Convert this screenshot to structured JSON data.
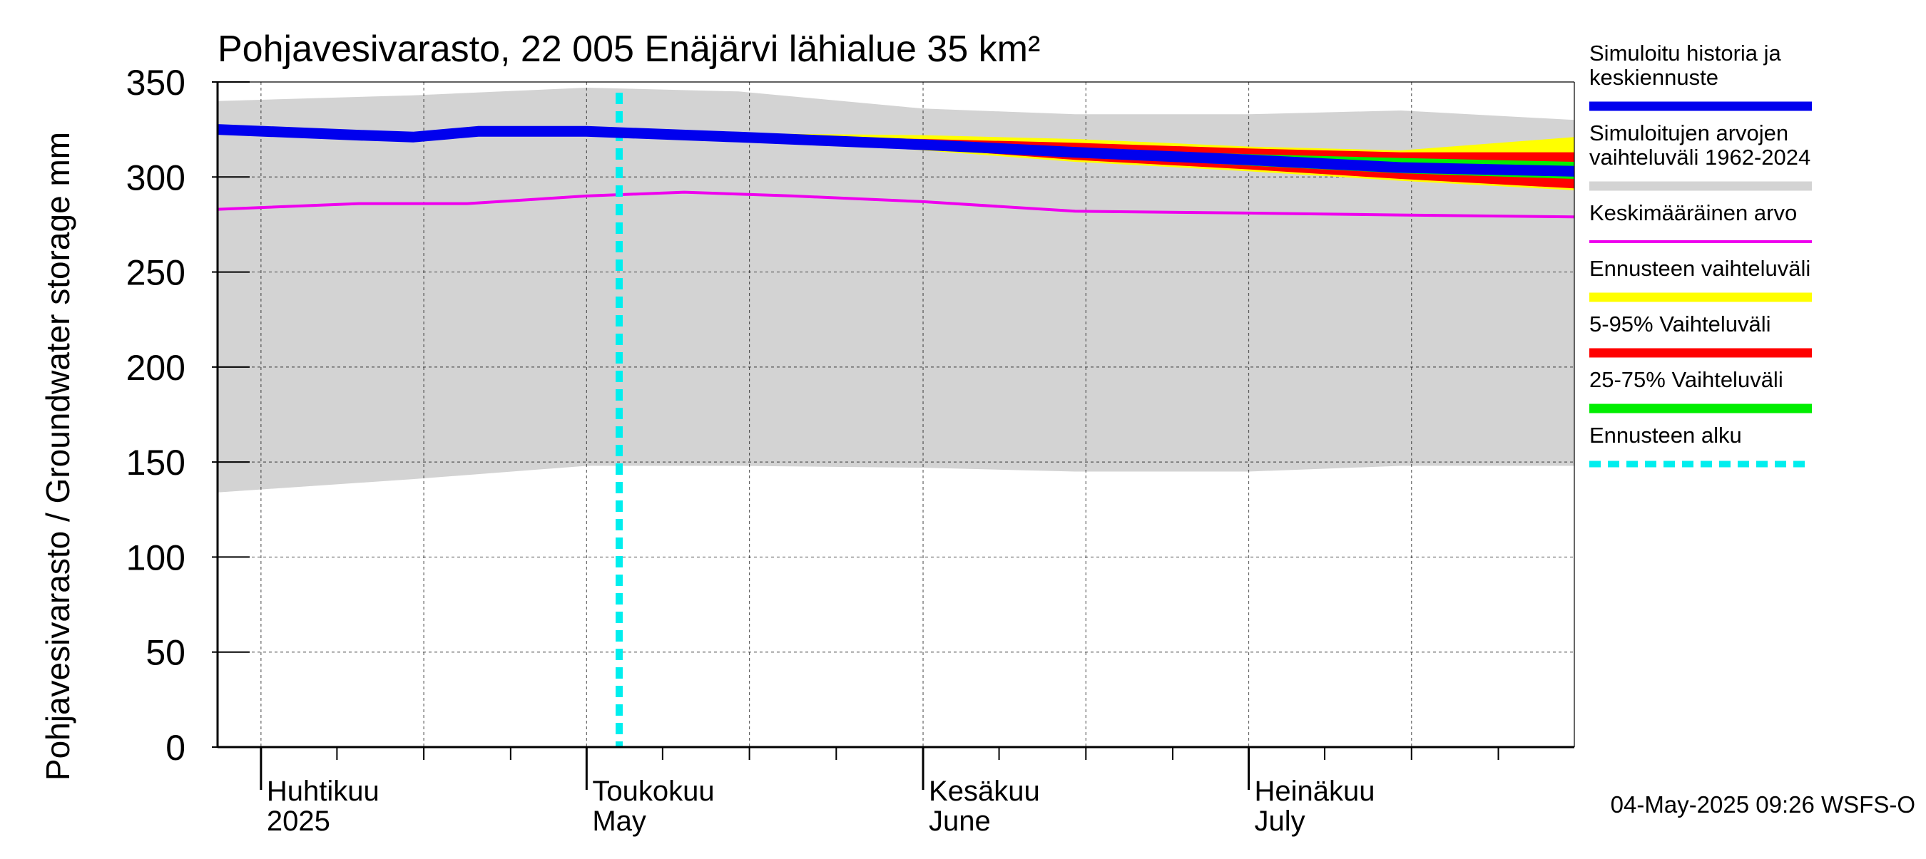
{
  "chart_data": {
    "type": "area",
    "title": "Pohjavesivarasto, 22 005 Enäjärvi lähialue 35 km²",
    "ylabel": "Pohjavesivarasto / Groundwater storage   mm",
    "ylim": [
      0,
      350
    ],
    "yticks": [
      0,
      50,
      100,
      150,
      200,
      250,
      300,
      350
    ],
    "ytick_labels": [
      "0",
      "50",
      "100",
      "150",
      "200",
      "250",
      "300",
      "350"
    ],
    "xlim": [
      "2025-03-28",
      "2025-07-31"
    ],
    "grid": true,
    "legend_position": "right",
    "month_labels": [
      {
        "date": "2025-04-01",
        "line1": "Huhtikuu",
        "line2": "2025"
      },
      {
        "date": "2025-05-01",
        "line1": "Toukokuu",
        "line2": "May"
      },
      {
        "date": "2025-06-01",
        "line1": "Kesäkuu",
        "line2": "June"
      },
      {
        "date": "2025-07-01",
        "line1": "Heinäkuu",
        "line2": "July"
      }
    ],
    "forecast_start": "2025-05-04",
    "historical_range": {
      "name": "Simuloitujen arvojen vaihteluväli 1962-2024",
      "color": "#d3d3d3",
      "x": [
        "2025-03-28",
        "2025-04-15",
        "2025-05-01",
        "2025-05-15",
        "2025-06-01",
        "2025-06-15",
        "2025-07-01",
        "2025-07-15",
        "2025-07-31"
      ],
      "upper": [
        340,
        343,
        347,
        345,
        336,
        333,
        333,
        335,
        330
      ],
      "lower": [
        134,
        141,
        148,
        148,
        147,
        145,
        145,
        148,
        148
      ]
    },
    "forecast_full_range": {
      "name": "Ennusteen vaihteluväli",
      "color": "#ffff00",
      "x": [
        "2025-05-04",
        "2025-05-15",
        "2025-06-01",
        "2025-06-15",
        "2025-07-01",
        "2025-07-15",
        "2025-07-31"
      ],
      "upper": [
        324,
        323,
        322,
        320,
        316,
        314,
        321
      ],
      "lower": [
        324,
        321,
        314,
        308,
        303,
        298,
        293
      ]
    },
    "forecast_p5_p95": {
      "name": "5-95% Vaihteluväli",
      "color": "#ff0000",
      "x": [
        "2025-05-04",
        "2025-05-15",
        "2025-06-01",
        "2025-06-15",
        "2025-07-01",
        "2025-07-15",
        "2025-07-31"
      ],
      "upper": [
        324,
        322,
        320,
        318,
        315,
        313,
        313
      ],
      "lower": [
        324,
        321,
        315,
        309,
        304,
        299,
        294
      ]
    },
    "forecast_p25_p75": {
      "name": "25-75% Vaihteluväli",
      "color": "#00ee00",
      "x": [
        "2025-05-04",
        "2025-05-15",
        "2025-06-01",
        "2025-06-15",
        "2025-07-01",
        "2025-07-15",
        "2025-07-31"
      ],
      "upper": [
        324,
        322,
        318,
        315,
        312,
        310,
        308
      ],
      "lower": [
        324,
        321,
        316,
        311,
        306,
        302,
        299
      ]
    },
    "series": [
      {
        "name": "Simuloitu historia ja keskiennuste",
        "color": "#0000ee",
        "x": [
          "2025-03-28",
          "2025-04-10",
          "2025-04-15",
          "2025-04-21",
          "2025-05-01",
          "2025-05-15",
          "2025-06-01",
          "2025-06-15",
          "2025-07-01",
          "2025-07-15",
          "2025-07-31"
        ],
        "y": [
          325,
          322,
          321,
          324,
          324,
          321,
          317,
          313,
          309,
          305,
          303
        ]
      },
      {
        "name": "Keskimääräinen arvo",
        "color": "#ee00ee",
        "x": [
          "2025-03-28",
          "2025-04-10",
          "2025-04-20",
          "2025-05-01",
          "2025-05-10",
          "2025-05-20",
          "2025-06-01",
          "2025-06-15",
          "2025-07-01",
          "2025-07-15",
          "2025-07-31"
        ],
        "y": [
          283,
          286,
          286,
          290,
          292,
          290,
          287,
          282,
          281,
          280,
          279
        ]
      }
    ],
    "legend": [
      {
        "lines": [
          "Simuloitu historia ja",
          "keskiennuste"
        ],
        "color": "#0000ee",
        "style": "solid"
      },
      {
        "lines": [
          "Simuloitujen arvojen",
          "vaihteluväli 1962-2024"
        ],
        "color": "#d3d3d3",
        "style": "solid"
      },
      {
        "lines": [
          "Keskimääräinen arvo"
        ],
        "color": "#ee00ee",
        "style": "thin"
      },
      {
        "lines": [
          "Ennusteen vaihteluväli"
        ],
        "color": "#ffff00",
        "style": "solid"
      },
      {
        "lines": [
          "5-95% Vaihteluväli"
        ],
        "color": "#ff0000",
        "style": "solid"
      },
      {
        "lines": [
          "25-75% Vaihteluväli"
        ],
        "color": "#00ee00",
        "style": "solid"
      },
      {
        "lines": [
          "Ennusteen alku"
        ],
        "color": "#00eeee",
        "style": "dashed"
      }
    ],
    "timestamp": "04-May-2025 09:26 WSFS-O"
  }
}
